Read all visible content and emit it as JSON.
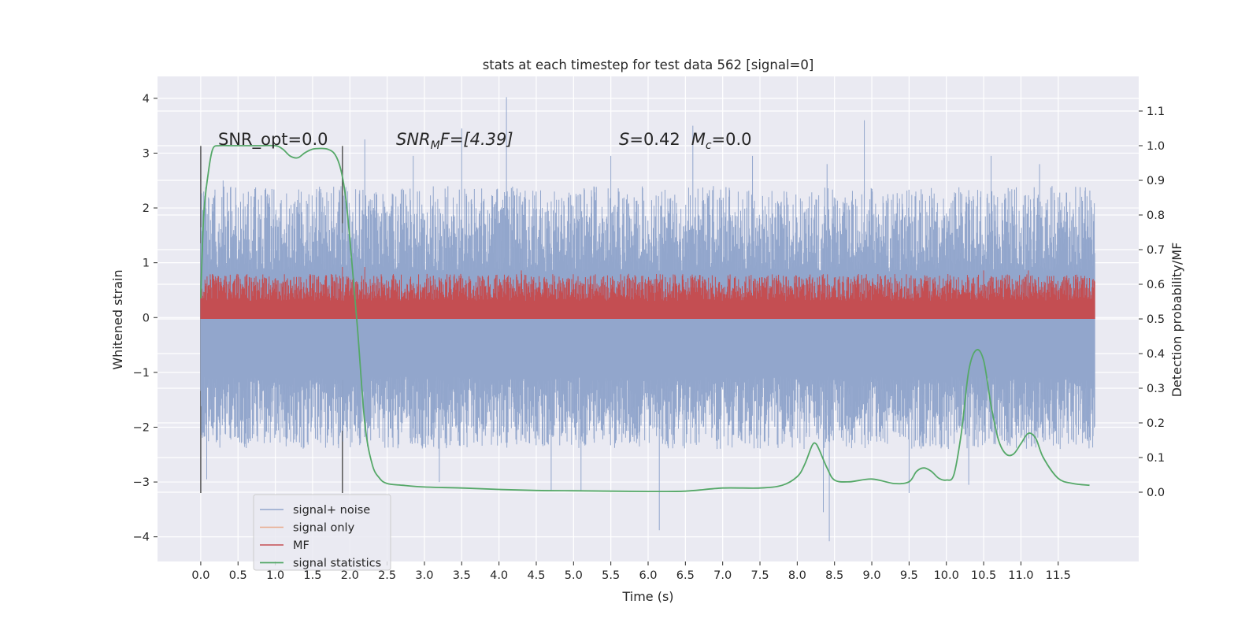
{
  "chart_data": {
    "type": "line",
    "title": "stats at each timestep for test data 562 [signal=0]",
    "xlabel": "Time (s)",
    "ylabel_left": "Whitened strain",
    "ylabel_right": "Detection probability/MF",
    "xlim": [
      -0.58,
      12.58
    ],
    "ylim_left": [
      -4.45,
      4.4
    ],
    "ylim_right": [
      -0.2,
      1.2
    ],
    "x_ticks": [
      0.0,
      0.5,
      1.0,
      1.5,
      2.0,
      2.5,
      3.0,
      3.5,
      4.0,
      4.5,
      5.0,
      5.5,
      6.0,
      6.5,
      7.0,
      7.5,
      8.0,
      8.5,
      9.0,
      9.5,
      10.0,
      10.5,
      11.0,
      11.5
    ],
    "x_tick_labels": [
      "0.0",
      "0.5",
      "1.0",
      "1.5",
      "2.0",
      "2.5",
      "3.0",
      "3.5",
      "4.0",
      "4.5",
      "5.0",
      "5.5",
      "6.0",
      "6.5",
      "7.0",
      "7.5",
      "8.0",
      "8.5",
      "9.0",
      "9.5",
      "10.0",
      "10.5",
      "11.0",
      "11.5"
    ],
    "y_left_ticks": [
      4,
      3,
      2,
      1,
      0,
      -1,
      -2,
      -3,
      -4
    ],
    "y_left_tick_labels": [
      "4",
      "3",
      "2",
      "1",
      "0",
      "−1",
      "−2",
      "−3",
      "−4"
    ],
    "y_right_ticks": [
      1.1,
      1.0,
      0.9,
      0.8,
      0.7,
      0.6,
      0.5,
      0.4,
      0.3,
      0.2,
      0.1,
      0.0
    ],
    "y_right_tick_labels": [
      "1.1",
      "1.0",
      "0.9",
      "0.8",
      "0.7",
      "0.6",
      "0.5",
      "0.4",
      "0.3",
      "0.2",
      "0.1",
      "0.0"
    ],
    "grid": true,
    "legend_position": "lower-left",
    "annotations": {
      "snr_opt": "SNR_opt=0.0",
      "snr_mf_main": "SNR",
      "snr_mf_sub": "M",
      "snr_mf_rest": "F=[4.39]",
      "s_var": "S",
      "s_val": "=0.42",
      "mc_var": "M",
      "mc_sub": "c",
      "mc_val": "=0.0"
    },
    "vertical_markers": [
      0.0,
      1.9
    ],
    "series": [
      {
        "name": "signal+ noise",
        "axis": "left",
        "color": "#92a6cc",
        "summary": {
          "x_range": [
            0.0,
            11.99
          ],
          "typical_min": -2.4,
          "typical_max": 2.4,
          "extreme_min": -4.08,
          "extreme_max": 4.02
        },
        "spikes": [
          [
            0.04,
            2.3
          ],
          [
            0.3,
            2.5
          ],
          [
            2.2,
            3.25
          ],
          [
            2.85,
            2.95
          ],
          [
            3.5,
            3.45
          ],
          [
            4.1,
            4.02
          ],
          [
            5.5,
            2.95
          ],
          [
            6.6,
            3.5
          ],
          [
            7.4,
            2.95
          ],
          [
            8.4,
            2.8
          ],
          [
            8.9,
            3.6
          ],
          [
            10.6,
            2.95
          ],
          [
            11.25,
            2.8
          ],
          [
            0.08,
            -2.95
          ],
          [
            3.2,
            -3.0
          ],
          [
            4.7,
            -3.15
          ],
          [
            5.1,
            -3.15
          ],
          [
            6.15,
            -3.88
          ],
          [
            8.35,
            -3.55
          ],
          [
            8.43,
            -4.08
          ],
          [
            9.5,
            -3.2
          ],
          [
            10.3,
            -3.05
          ]
        ]
      },
      {
        "name": "signal only",
        "axis": "left",
        "color": "#e8a98a",
        "values_note": "flat at 0"
      },
      {
        "name": "MF",
        "axis": "right",
        "color": "#c44e52",
        "summary": {
          "x_range": [
            0.0,
            11.99
          ],
          "baseline": 0.5,
          "typical_max": 0.63,
          "extreme_max": 0.65
        }
      },
      {
        "name": "signal statistics",
        "axis": "right",
        "color": "#55a868",
        "x": [
          0.0,
          0.04,
          0.1,
          0.16,
          0.25,
          0.4,
          0.6,
          0.8,
          1.0,
          1.1,
          1.2,
          1.3,
          1.4,
          1.5,
          1.6,
          1.7,
          1.8,
          1.88,
          1.95,
          2.02,
          2.1,
          2.2,
          2.3,
          2.4,
          2.5,
          2.7,
          3.0,
          3.5,
          4.0,
          4.5,
          5.0,
          5.5,
          6.0,
          6.5,
          7.0,
          7.5,
          7.8,
          8.0,
          8.1,
          8.2,
          8.25,
          8.3,
          8.4,
          8.5,
          8.7,
          9.0,
          9.3,
          9.5,
          9.6,
          9.7,
          9.8,
          9.9,
          10.0,
          10.1,
          10.2,
          10.3,
          10.4,
          10.5,
          10.6,
          10.7,
          10.8,
          10.9,
          11.0,
          11.1,
          11.2,
          11.3,
          11.5,
          11.7,
          11.92
        ],
        "values": [
          0.56,
          0.8,
          0.92,
          0.99,
          1.0,
          1.0,
          1.0,
          1.0,
          1.0,
          0.99,
          0.97,
          0.965,
          0.98,
          0.99,
          0.992,
          0.99,
          0.975,
          0.93,
          0.84,
          0.68,
          0.48,
          0.2,
          0.08,
          0.04,
          0.025,
          0.02,
          0.015,
          0.012,
          0.008,
          0.005,
          0.004,
          0.003,
          0.002,
          0.003,
          0.012,
          0.012,
          0.02,
          0.045,
          0.08,
          0.135,
          0.14,
          0.12,
          0.07,
          0.035,
          0.03,
          0.038,
          0.025,
          0.03,
          0.06,
          0.07,
          0.06,
          0.04,
          0.035,
          0.05,
          0.17,
          0.35,
          0.41,
          0.38,
          0.25,
          0.15,
          0.11,
          0.11,
          0.14,
          0.17,
          0.155,
          0.1,
          0.04,
          0.025,
          0.02
        ]
      }
    ]
  }
}
